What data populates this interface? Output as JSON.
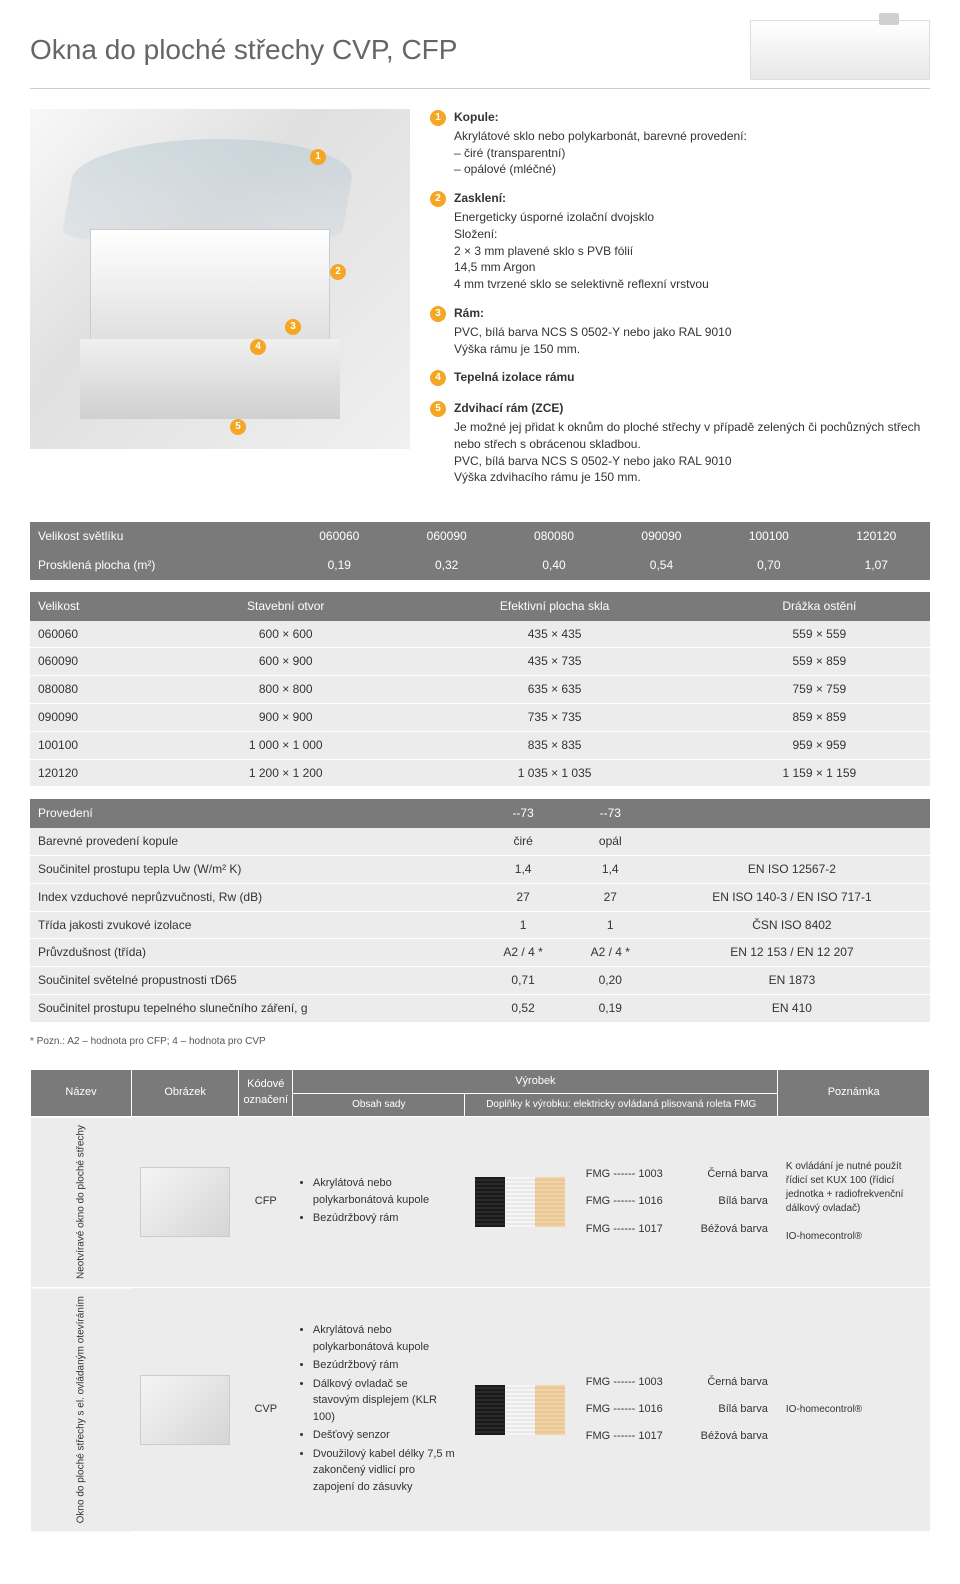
{
  "title": "Okna do ploché střechy CVP, CFP",
  "callouts": [
    {
      "n": "1",
      "title": "Kopule:",
      "body": "Akrylátové sklo nebo polykarbonát, barevné provedení:\n– čiré (transparentní)\n– opálové (mléčné)"
    },
    {
      "n": "2",
      "title": "Zasklení:",
      "body": "Energeticky úsporné izolační dvojsklo\nSložení:\n2 × 3 mm plavené sklo s PVB fólií\n14,5 mm Argon\n4 mm tvrzené sklo se selektivně reflexní vrstvou"
    },
    {
      "n": "3",
      "title": "Rám:",
      "body": "PVC, bílá barva NCS S 0502-Y nebo jako RAL 9010\nVýška rámu je 150 mm."
    },
    {
      "n": "4",
      "title": "Tepelná izolace rámu",
      "body": ""
    },
    {
      "n": "5",
      "title": "Zdvihací rám (ZCE)",
      "body": "Je možné jej přidat k oknům do ploché střechy v případě zelených či pochůzných střech nebo střech s obrácenou skladbou.\nPVC, bílá barva NCS S 0502-Y nebo jako RAL 9010\nVýška zdvihacího rámu je 150 mm."
    }
  ],
  "table1": {
    "rows": [
      {
        "label": "Velikost světlíku",
        "cells": [
          "060060",
          "060090",
          "080080",
          "090090",
          "100100",
          "120120"
        ]
      },
      {
        "label": "Prosklená plocha (m²)",
        "cells": [
          "0,19",
          "0,32",
          "0,40",
          "0,54",
          "0,70",
          "1,07"
        ]
      }
    ]
  },
  "table2": {
    "headers": [
      "Velikost",
      "Stavební otvor",
      "Efektivní plocha skla",
      "Drážka ostění"
    ],
    "rows": [
      [
        "060060",
        "600 × 600",
        "435 × 435",
        "559 × 559"
      ],
      [
        "060090",
        "600 × 900",
        "435 × 735",
        "559 × 859"
      ],
      [
        "080080",
        "800 × 800",
        "635 × 635",
        "759 × 759"
      ],
      [
        "090090",
        "900 × 900",
        "735 × 735",
        "859 × 859"
      ],
      [
        "100100",
        "1 000 × 1 000",
        "835 × 835",
        "959 × 959"
      ],
      [
        "120120",
        "1 200 × 1 200",
        "1 035 × 1 035",
        "1 159 × 1 159"
      ]
    ]
  },
  "table3": {
    "rows": [
      {
        "l": "Provedení",
        "c1": "--73",
        "c2": "--73",
        "c3": ""
      },
      {
        "l": "Barevné provedení kopule",
        "c1": "čiré",
        "c2": "opál",
        "c3": ""
      },
      {
        "l": "Součinitel prostupu tepla Uᴡ (W/m² K)",
        "c1": "1,4",
        "c2": "1,4",
        "c3": "EN ISO 12567-2"
      },
      {
        "l": "Index vzduchové neprůzvučnosti, Rᴡ (dB)",
        "c1": "27",
        "c2": "27",
        "c3": "EN ISO 140-3 / EN ISO 717-1"
      },
      {
        "l": "Třída jakosti zvukové izolace",
        "c1": "1",
        "c2": "1",
        "c3": "ČSN ISO 8402"
      },
      {
        "l": "Průvzdušnost (třída)",
        "c1": "A2 / 4 *",
        "c2": "A2 / 4 *",
        "c3": "EN 12 153 / EN 12 207"
      },
      {
        "l": "Součinitel světelné propustnosti τD65",
        "c1": "0,71",
        "c2": "0,20",
        "c3": "EN 1873"
      },
      {
        "l": "Součinitel prostupu tepelného slunečního záření, g",
        "c1": "0,52",
        "c2": "0,19",
        "c3": "EN 410"
      }
    ]
  },
  "note": "* Pozn.: A2 – hodnota pro CFP; 4 – hodnota pro CVP",
  "prod_header_top": "Výrobek",
  "prod_headers": {
    "name": "Název",
    "img": "Obrázek",
    "code": "Kódové označení",
    "contents": "Obsah sady",
    "accessories": "Doplňky k výrobku: elektricky ovládaná plisovaná roleta FMG",
    "note": "Poznámka"
  },
  "products": [
    {
      "vlabel": "Neotvíravé okno\ndo ploché střechy",
      "code": "CFP",
      "bullets": [
        "Akrylátová nebo polykarbonátová kupole",
        "Bezúdržbový rám"
      ],
      "fmg": [
        {
          "code": "FMG ------ 1003",
          "color": "Černá barva"
        },
        {
          "code": "FMG ------ 1016",
          "color": "Bílá barva"
        },
        {
          "code": "FMG ------ 1017",
          "color": "Béžová barva"
        }
      ],
      "note": "K ovládání je nutné použít řídicí set KUX 100 (řídicí jednotka + radiofrekvenční dálkový ovladač)\n\nIO-homecontrol®"
    },
    {
      "vlabel": "Okno do ploché střechy\ns el. ovládaným otevíráním",
      "code": "CVP",
      "bullets": [
        "Akrylátová nebo polykarbonátová kupole",
        "Bezúdržbový rám",
        "Dálkový ovladač se stavovým displejem (KLR 100)",
        "Dešťový senzor",
        "Dvoužilový kabel délky 7,5 m zakončený vidlicí pro zapojení do zásuvky"
      ],
      "fmg": [
        {
          "code": "FMG ------ 1003",
          "color": "Černá barva"
        },
        {
          "code": "FMG ------ 1016",
          "color": "Bílá barva"
        },
        {
          "code": "FMG ------ 1017",
          "color": "Béžová barva"
        }
      ],
      "note": "IO-homecontrol®"
    }
  ]
}
